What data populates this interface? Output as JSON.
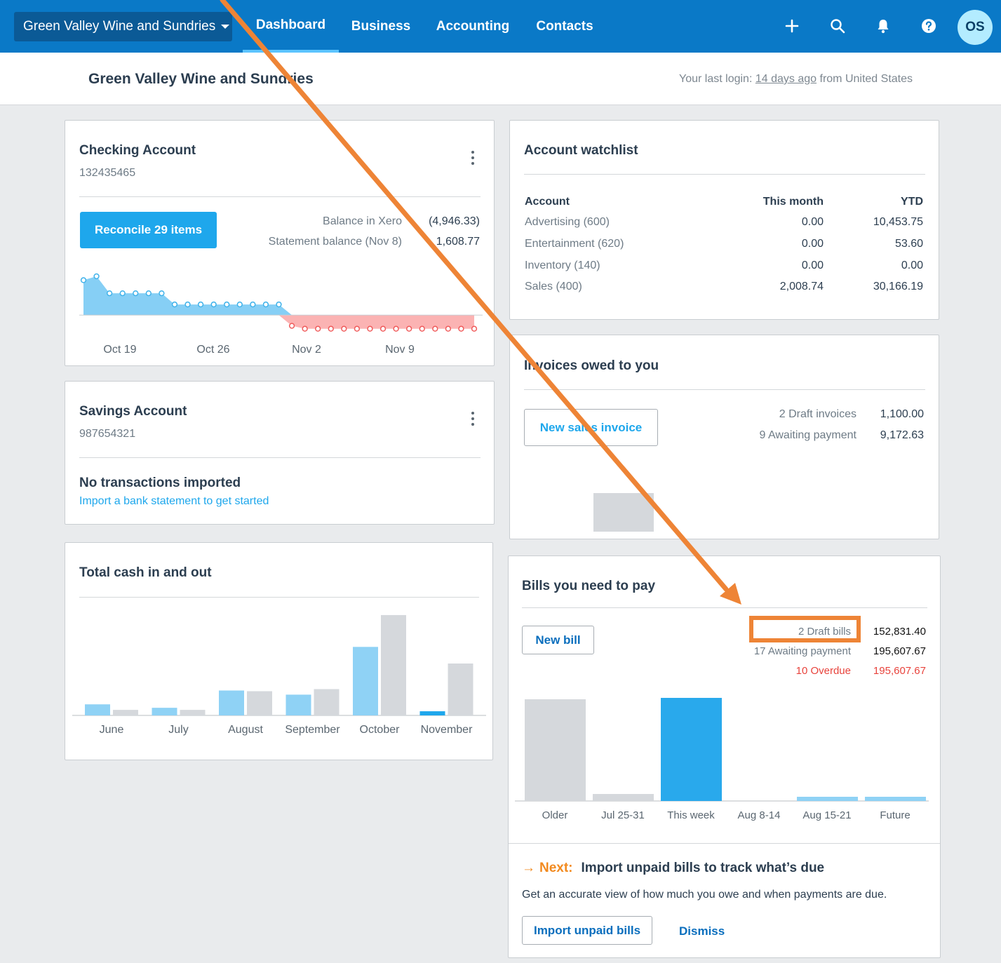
{
  "nav": {
    "org_name": "Green Valley Wine and Sundries",
    "items": [
      "Dashboard",
      "Business",
      "Accounting",
      "Contacts"
    ],
    "active": "Dashboard",
    "avatar_initials": "OS"
  },
  "header": {
    "title": "Green Valley Wine and Sundries",
    "login_prefix": "Your last login:",
    "login_link": "14 days ago",
    "login_suffix": "from United States"
  },
  "checking": {
    "title": "Checking Account",
    "number": "132435465",
    "reconcile_label": "Reconcile 29 items",
    "balance_xero_label": "Balance in Xero",
    "balance_xero_value": "(4,946.33)",
    "statement_label": "Statement balance (Nov 8)",
    "statement_value": "1,608.77",
    "chart_labels": [
      "Oct 19",
      "Oct 26",
      "Nov 2",
      "Nov 9"
    ]
  },
  "savings": {
    "title": "Savings Account",
    "number": "987654321",
    "empty_title": "No transactions imported",
    "empty_link": "Import a bank statement to get started"
  },
  "cash": {
    "title": "Total cash in and out"
  },
  "watchlist": {
    "title": "Account watchlist",
    "headers": {
      "account": "Account",
      "month": "This month",
      "ytd": "YTD"
    },
    "rows": [
      {
        "account": "Advertising (600)",
        "month": "0.00",
        "ytd": "10,453.75"
      },
      {
        "account": "Entertainment (620)",
        "month": "0.00",
        "ytd": "53.60"
      },
      {
        "account": "Inventory (140)",
        "month": "0.00",
        "ytd": "0.00"
      },
      {
        "account": "Sales (400)",
        "month": "2,008.74",
        "ytd": "30,166.19"
      }
    ]
  },
  "invoices": {
    "title": "Invoices owed to you",
    "button_label": "New sales invoice",
    "draft_label": "2 Draft invoices",
    "draft_value": "1,100.00",
    "awaiting_label": "9 Awaiting payment",
    "awaiting_value": "9,172.63"
  },
  "bills": {
    "title": "Bills you need to pay",
    "button_label": "New bill",
    "draft_label": "2 Draft bills",
    "draft_value": "152,831.40",
    "awaiting_label": "17 Awaiting payment",
    "awaiting_value": "195,607.67",
    "overdue_label": "10 Overdue",
    "overdue_value": "195,607.67",
    "next_label": "Next:",
    "next_title": "Import unpaid bills to track what’s due",
    "next_desc": "Get an accurate view of how much you owe and when payments are due.",
    "import_label": "Import unpaid bills",
    "dismiss_label": "Dismiss"
  },
  "chart_data": [
    {
      "type": "area",
      "title": "Checking Account",
      "x": [
        "Oct 16",
        "Oct 17",
        "Oct 18",
        "Oct 19",
        "Oct 20",
        "Oct 21",
        "Oct 22",
        "Oct 23",
        "Oct 24",
        "Oct 25",
        "Oct 26",
        "Oct 27",
        "Oct 28",
        "Oct 29",
        "Oct 30",
        "Oct 31",
        "Nov 1",
        "Nov 2",
        "Nov 3",
        "Nov 4",
        "Nov 5",
        "Nov 6",
        "Nov 7",
        "Nov 8",
        "Nov 9",
        "Nov 10",
        "Nov 11",
        "Nov 12",
        "Nov 13",
        "Nov 14",
        "Nov 15"
      ],
      "tick_labels": [
        "Oct 19",
        "Oct 26",
        "Nov 2",
        "Nov 9"
      ],
      "values": [
        7200,
        8000,
        4500,
        4500,
        4500,
        4500,
        4500,
        2200,
        2200,
        2200,
        2200,
        2200,
        2200,
        2200,
        2200,
        2200,
        -2200,
        -2800,
        -2800,
        -2800,
        -2800,
        -2800,
        -2800,
        -2800,
        -2800,
        -2800,
        -2800,
        -2800,
        -2800,
        -2800,
        -2800
      ],
      "ylim": [
        -4000,
        9000
      ],
      "positive_color": "#86cff5",
      "negative_color": "#fbb3b3"
    },
    {
      "type": "bar",
      "title": "Total cash in and out",
      "categories": [
        "June",
        "July",
        "August",
        "September",
        "October",
        "November"
      ],
      "series": [
        {
          "name": "Cash in",
          "values": [
            16,
            11,
            36,
            30,
            99,
            6
          ],
          "color": "#8fd2f5"
        },
        {
          "name": "Cash out",
          "values": [
            8,
            8,
            35,
            38,
            145,
            75
          ],
          "color": "#d5d8dc"
        }
      ],
      "highlight": {
        "category": "November",
        "series": "Cash in",
        "color": "#1ea7ec"
      },
      "ylim": [
        0,
        150
      ]
    },
    {
      "type": "bar",
      "title": "Invoices owed to you",
      "categories": [
        "",
        "",
        "",
        "",
        "",
        ""
      ],
      "values": [
        0,
        55,
        0,
        0,
        0,
        0
      ],
      "color": "#d5d8dc",
      "ylim": [
        0,
        150
      ]
    },
    {
      "type": "bar",
      "title": "Bills you need to pay",
      "categories": [
        "Older",
        "Jul 25-31",
        "This week",
        "Aug 8-14",
        "Aug 15-21",
        "Future"
      ],
      "values": [
        145,
        10,
        147,
        0,
        6,
        6
      ],
      "colors": [
        "#d5d8dc",
        "#d5d8dc",
        "#29a9ec",
        "#d5d8dc",
        "#8fd2f5",
        "#8fd2f5"
      ],
      "ylim": [
        0,
        150
      ]
    }
  ]
}
